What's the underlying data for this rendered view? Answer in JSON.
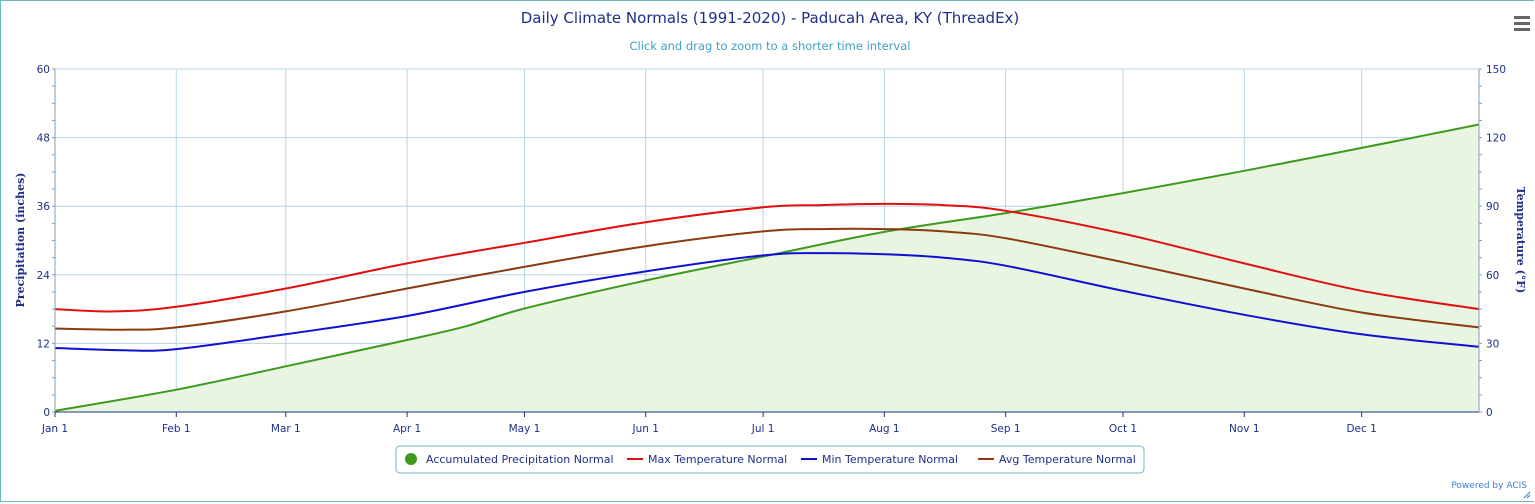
{
  "chart_data": {
    "type": "line",
    "title": "Daily Climate Normals (1991-2020) - Paducah Area, KY (ThreadEx)",
    "subtitle": "Click and drag to zoom to a shorter time interval",
    "credit": "Powered by ACIS",
    "x_tick_labels": [
      "Jan 1",
      "Feb 1",
      "Mar 1",
      "Apr 1",
      "May 1",
      "Jun 1",
      "Jul 1",
      "Aug 1",
      "Sep 1",
      "Oct 1",
      "Nov 1",
      "Dec 1"
    ],
    "x_tick_days": [
      0,
      31,
      59,
      90,
      120,
      151,
      181,
      212,
      243,
      273,
      304,
      334
    ],
    "x_range": [
      0,
      364
    ],
    "y_left": {
      "label": "Precipitation (inches)",
      "range": [
        0,
        60
      ],
      "ticks": [
        0,
        12,
        24,
        36,
        48,
        60
      ]
    },
    "y_right": {
      "label": "Temperature (°F)",
      "range": [
        0,
        150
      ],
      "ticks": [
        0,
        30,
        60,
        90,
        120,
        150
      ]
    },
    "grid": true,
    "legend_placement": "bottom-center",
    "series": [
      {
        "name": "Accumulated Precipitation Normal",
        "axis": "left",
        "type": "area",
        "color": "#3d9a1f",
        "fill": "#e8f5e1",
        "legend_symbol": "circle",
        "x": [
          0,
          31,
          59,
          90,
          105,
          120,
          151,
          181,
          212,
          243,
          273,
          304,
          334,
          364
        ],
        "y": [
          0.2,
          3.9,
          8.0,
          12.6,
          15.0,
          18.1,
          23.0,
          27.2,
          31.5,
          34.8,
          38.3,
          42.2,
          46.2,
          50.3
        ]
      },
      {
        "name": "Max Temperature Normal",
        "axis": "right",
        "type": "line",
        "color": "#e01010",
        "legend_symbol": "line",
        "x": [
          0,
          15,
          31,
          59,
          90,
          120,
          151,
          181,
          196,
          212,
          227,
          243,
          273,
          304,
          334,
          364
        ],
        "y": [
          45,
          44,
          46,
          54,
          65,
          74,
          83,
          89.5,
          90.5,
          91,
          90.5,
          88,
          78,
          65,
          53,
          45
        ]
      },
      {
        "name": "Min Temperature Normal",
        "axis": "right",
        "type": "line",
        "color": "#1010d0",
        "legend_symbol": "line",
        "x": [
          0,
          18,
          31,
          59,
          90,
          120,
          151,
          181,
          196,
          212,
          227,
          243,
          273,
          304,
          334,
          364
        ],
        "y": [
          28,
          27,
          27.5,
          34,
          42,
          52.5,
          61.5,
          68.5,
          69.5,
          69,
          67.5,
          64,
          53,
          42.5,
          34,
          28.5
        ]
      },
      {
        "name": "Avg Temperature Normal",
        "axis": "right",
        "type": "line",
        "color": "#8b3a10",
        "legend_symbol": "line",
        "x": [
          0,
          18,
          31,
          59,
          90,
          120,
          151,
          181,
          196,
          212,
          227,
          243,
          273,
          304,
          334,
          364
        ],
        "y": [
          36.5,
          36,
          37,
          44,
          54,
          63.5,
          72.5,
          79,
          80,
          80,
          79,
          76,
          65.5,
          54,
          43.5,
          37
        ]
      }
    ]
  }
}
